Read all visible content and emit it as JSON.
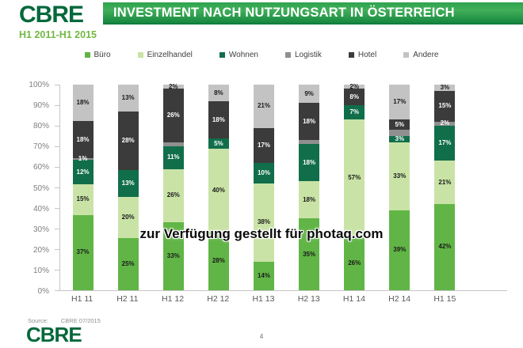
{
  "colors": {
    "brand_green": "#04693B",
    "subtitle_green": "#72B843",
    "axis_line": "#C6C6C6",
    "tick_label": "#7F7F7F",
    "x_label": "#595959"
  },
  "header": {
    "logo": "CBRE",
    "title": "INVESTMENT NACH NUTZUNGSART IN ÖSTERREICH",
    "subtitle": "H1 2011-H1 2015"
  },
  "watermark": {
    "text": "zur Verfügung gestellt für photaq.com"
  },
  "chart_data": {
    "type": "bar",
    "stacked": true,
    "unit": "percent",
    "title": "INVESTMENT NACH NUTZUNGSART IN ÖSTERREICH",
    "categories": [
      "H1 11",
      "H2 11",
      "H1 12",
      "H2 12",
      "H1 13",
      "H2 13",
      "H1 14",
      "H2 14",
      "H1 15"
    ],
    "series": [
      {
        "name": "Büro",
        "color": "#61B546",
        "label_color": "#1a1a1a",
        "values": [
          37,
          25,
          33,
          28,
          14,
          35,
          26,
          39,
          42
        ],
        "labels": [
          "37%",
          "25%",
          "33%",
          "28%",
          "14%",
          "35%",
          "26%",
          "39%",
          "42%"
        ]
      },
      {
        "name": "Einzelhandel",
        "color": "#C9E3A6",
        "label_color": "#1a1a1a",
        "values": [
          15,
          20,
          26,
          40,
          38,
          18,
          57,
          33,
          21
        ],
        "labels": [
          "15%",
          "20%",
          "26%",
          "40%",
          "38%",
          "18%",
          "57%",
          "33%",
          "21%"
        ]
      },
      {
        "name": "Wohnen",
        "color": "#116E4B",
        "label_color": "#ffffff",
        "values": [
          12,
          13,
          11,
          5,
          10,
          18,
          7,
          3,
          17
        ],
        "labels": [
          "12%",
          "13%",
          "11%",
          "5%",
          "10%",
          "18%",
          "7%",
          "3%",
          "17%"
        ]
      },
      {
        "name": "Logistik",
        "color": "#8F8F8F",
        "label_color": "#ffffff",
        "values": [
          1,
          0,
          2,
          0,
          0,
          2,
          0,
          3,
          2
        ],
        "labels": [
          "1%",
          "",
          "",
          "",
          "",
          "",
          "",
          "",
          "2%"
        ]
      },
      {
        "name": "Hotel",
        "color": "#3B3B3B",
        "label_color": "#ffffff",
        "values": [
          18,
          28,
          26,
          18,
          17,
          18,
          8,
          5,
          15
        ],
        "labels": [
          "18%",
          "28%",
          "26%",
          "18%",
          "17%",
          "18%",
          "8%",
          "5%",
          "15%"
        ]
      },
      {
        "name": "Andere",
        "color": "#C3C3C3",
        "label_color": "#1a1a1a",
        "values": [
          18,
          13,
          2,
          8,
          21,
          9,
          2,
          17,
          3
        ],
        "labels": [
          "18%",
          "13%",
          "2%",
          "8%",
          "21%",
          "9%",
          "2%",
          "17%",
          "3%"
        ]
      }
    ],
    "ylim": [
      0,
      100
    ],
    "y_ticks": [
      "100%",
      "90%",
      "80%",
      "70%",
      "60%",
      "50%",
      "40%",
      "30%",
      "20%",
      "10%",
      "0%"
    ],
    "legend_position": "top",
    "grid": false
  },
  "footer": {
    "source_label": "Source:",
    "source_value": "CBRE 07/2015",
    "logo": "CBRE",
    "page_number": "4"
  }
}
